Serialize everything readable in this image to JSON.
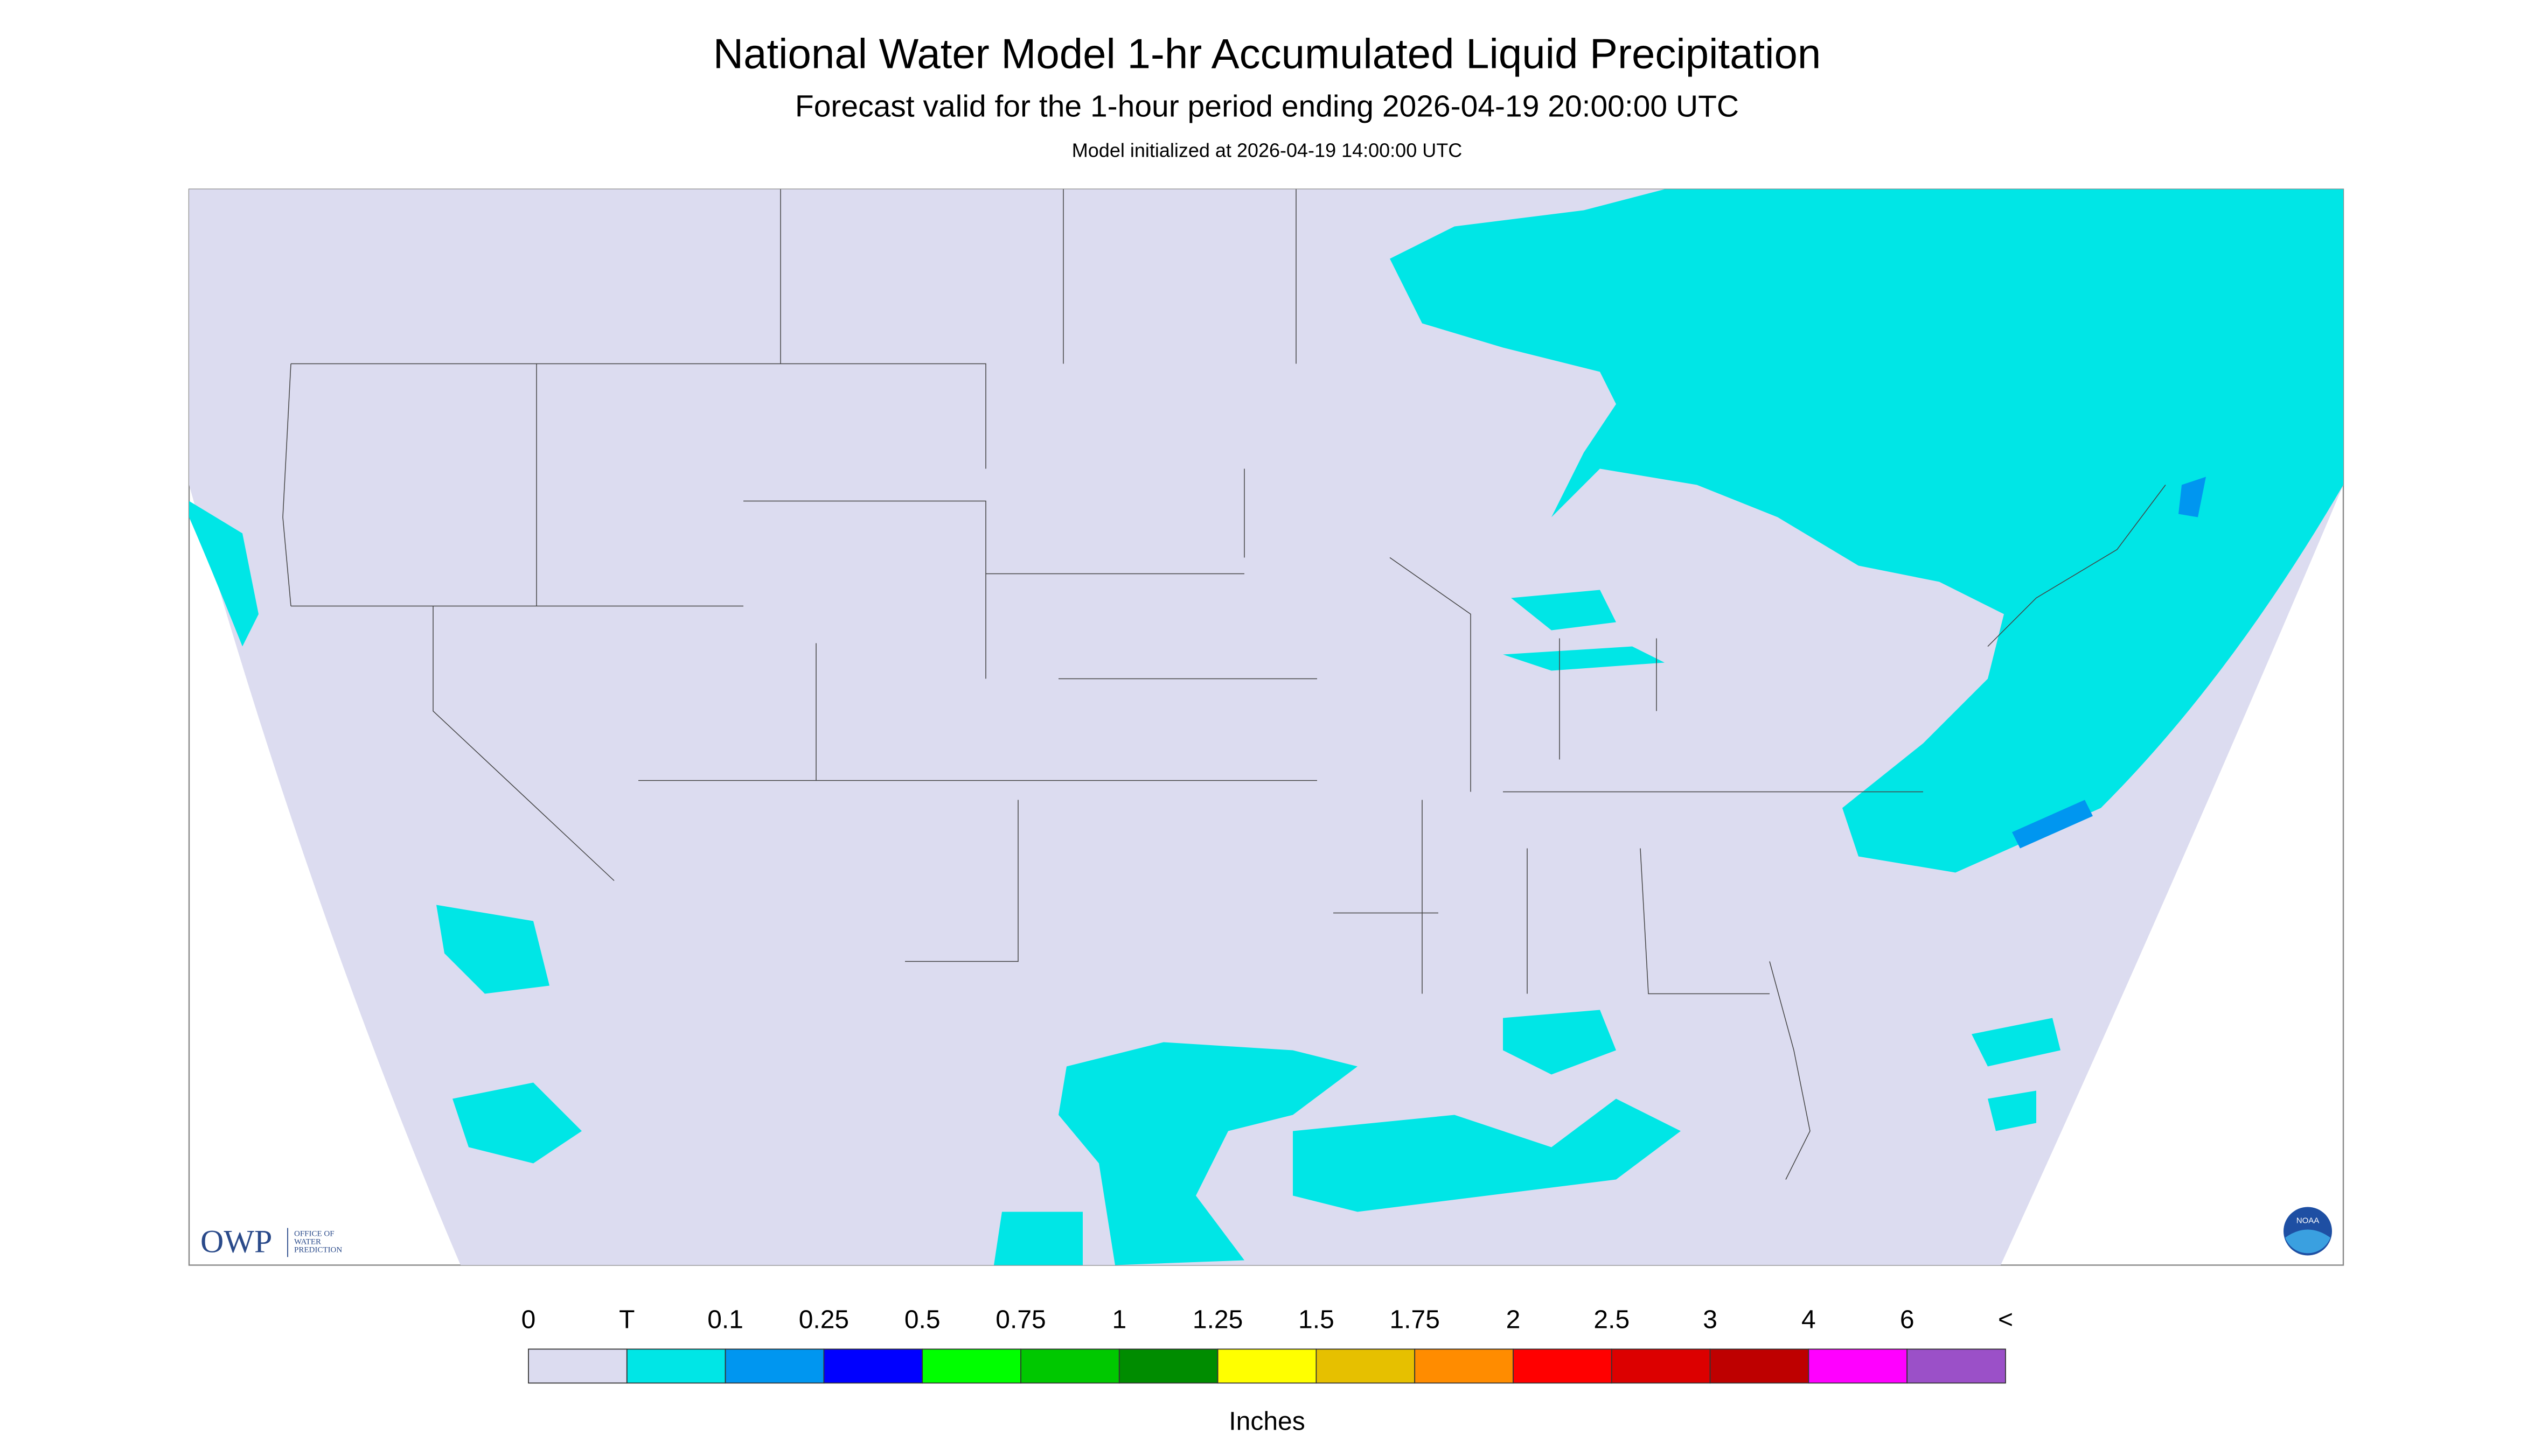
{
  "header": {
    "title": "National Water Model 1-hr Accumulated Liquid Precipitation",
    "subtitle": "Forecast valid for the 1-hour period ending 2026-04-19 20:00:00 UTC",
    "note": "Model initialized at 2026-04-19 14:00:00 UTC"
  },
  "legend": {
    "labels": [
      "0",
      "T",
      "0.1",
      "0.25",
      "0.5",
      "0.75",
      "1",
      "1.25",
      "1.5",
      "1.75",
      "2",
      "2.5",
      "3",
      "4",
      "6",
      "<"
    ],
    "colors": [
      "#dcdcf0",
      "#00e6e6",
      "#0096f0",
      "#0000ff",
      "#00ff00",
      "#00c800",
      "#008c00",
      "#ffff00",
      "#e6c000",
      "#ff8c00",
      "#ff0000",
      "#dc0000",
      "#be0000",
      "#ff00ff",
      "#9b50c8"
    ],
    "unit": "Inches"
  },
  "logos": {
    "owp": "OWP",
    "owp_lines": [
      "OFFICE OF",
      "WATER",
      "PREDICTION"
    ],
    "noaa": "NOAA"
  }
}
